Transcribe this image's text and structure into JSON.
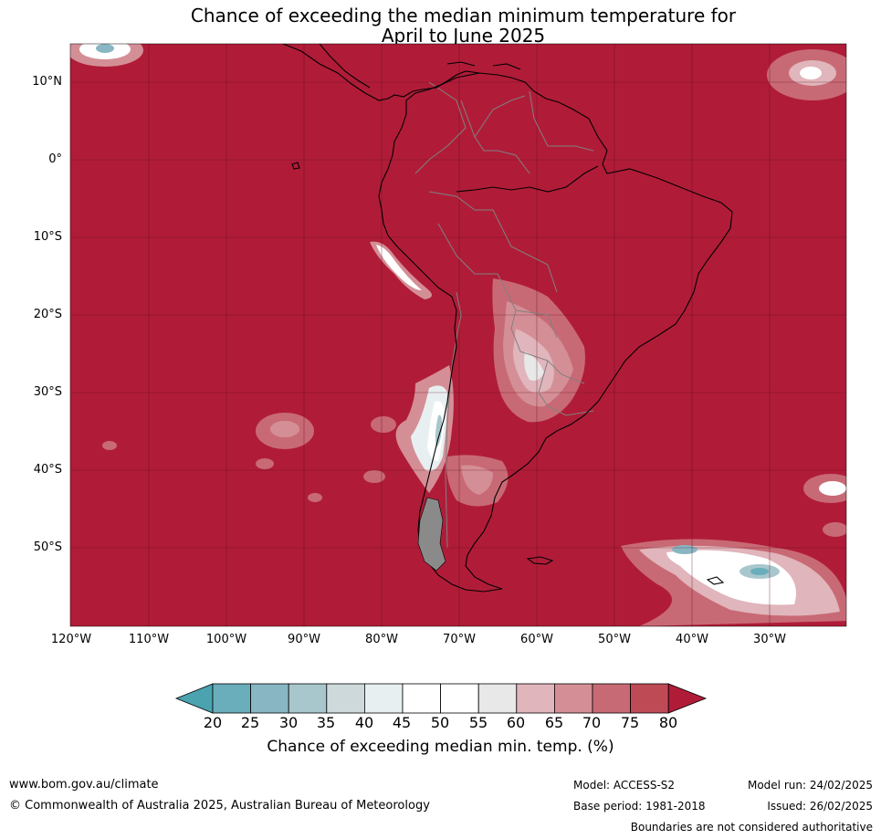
{
  "title": {
    "line1": "Chance of exceeding the median minimum temperature for",
    "line2": "April to June 2025"
  },
  "map": {
    "lat_labels": [
      "10°N",
      "0°",
      "10°S",
      "20°S",
      "30°S",
      "40°S",
      "50°S"
    ],
    "lon_labels": [
      "120°W",
      "110°W",
      "100°W",
      "90°W",
      "80°W",
      "70°W",
      "60°W",
      "50°W",
      "40°W",
      "30°W"
    ],
    "colors": {
      "c20": "#4ba3b0",
      "c25": "#6aadbb",
      "c30": "#89b6c3",
      "c35": "#a8c7cd",
      "c40": "#ced9dc",
      "c45": "#e8eff1",
      "c50": "#ffffff",
      "c55": "#ffffff",
      "c60": "#e8e8e8",
      "c65": "#e0b5bb",
      "c70": "#d48f96",
      "c75": "#c86a75",
      "c80": "#be4a56",
      "c100": "#b01c38"
    }
  },
  "colorbar": {
    "ticks": [
      "20",
      "25",
      "30",
      "35",
      "40",
      "45",
      "50",
      "55",
      "60",
      "65",
      "70",
      "75",
      "80"
    ],
    "label": "Chance of exceeding median min. temp. (%)"
  },
  "footer": {
    "website": "www.bom.gov.au/climate",
    "copyright": "© Commonwealth of Australia 2025, Australian Bureau of Meteorology",
    "model": "Model: ACCESS-S2",
    "base_period": "Base period: 1981-2018",
    "model_run": "Model run: 24/02/2025",
    "issued": "Issued: 26/02/2025",
    "disclaimer": "Boundaries are not considered authoritative"
  }
}
